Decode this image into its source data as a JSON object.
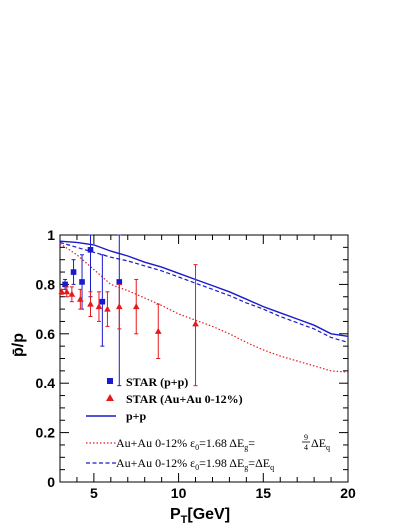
{
  "chart_data": {
    "type": "line",
    "title": "",
    "xlabel": "P_T[GeV]",
    "ylabel": "p̄/p",
    "xlim": [
      3,
      20
    ],
    "ylim": [
      0,
      1
    ],
    "xticks": [
      5,
      10,
      15,
      20
    ],
    "yticks": [
      0,
      0.2,
      0.4,
      0.6,
      0.8,
      1
    ],
    "xtick_labels": [
      "5",
      "10",
      "15",
      "20"
    ],
    "ytick_labels": [
      "0",
      "0.2",
      "0.4",
      "0.6",
      "0.8",
      "1"
    ],
    "grid": false,
    "legend_position": "bottom-left",
    "colors": {
      "blue": "#1a1acc",
      "red": "#e41a1c"
    },
    "series": [
      {
        "name": "STAR (p+p)",
        "kind": "points-blue-squares",
        "points": [
          {
            "x": 3.3,
            "y": 0.8,
            "lo": 0.78,
            "hi": 0.82
          },
          {
            "x": 3.8,
            "y": 0.85,
            "lo": 0.8,
            "hi": 0.9
          },
          {
            "x": 4.3,
            "y": 0.81,
            "lo": 0.7,
            "hi": 0.92
          },
          {
            "x": 4.8,
            "y": 0.94,
            "lo": 0.75,
            "hi": 1.0
          },
          {
            "x": 5.5,
            "y": 0.73,
            "lo": 0.55,
            "hi": 0.92
          },
          {
            "x": 6.5,
            "y": 0.81,
            "lo": 0.39,
            "hi": 1.0
          }
        ]
      },
      {
        "name": "STAR (Au+Au 0-12%)",
        "kind": "points-red-triangles",
        "points": [
          {
            "x": 3.1,
            "y": 0.77,
            "lo": 0.76,
            "hi": 0.78
          },
          {
            "x": 3.4,
            "y": 0.77,
            "lo": 0.75,
            "hi": 0.79
          },
          {
            "x": 3.7,
            "y": 0.76,
            "lo": 0.73,
            "hi": 0.79
          },
          {
            "x": 4.2,
            "y": 0.74,
            "lo": 0.7,
            "hi": 0.78
          },
          {
            "x": 4.8,
            "y": 0.72,
            "lo": 0.67,
            "hi": 0.77
          },
          {
            "x": 5.3,
            "y": 0.71,
            "lo": 0.65,
            "hi": 0.77
          },
          {
            "x": 5.8,
            "y": 0.7,
            "lo": 0.63,
            "hi": 0.77
          },
          {
            "x": 6.5,
            "y": 0.71,
            "lo": 0.62,
            "hi": 0.8
          },
          {
            "x": 7.5,
            "y": 0.71,
            "lo": 0.6,
            "hi": 0.82
          },
          {
            "x": 8.8,
            "y": 0.61,
            "lo": 0.5,
            "hi": 0.72
          },
          {
            "x": 11.0,
            "y": 0.64,
            "lo": 0.39,
            "hi": 0.88
          }
        ]
      },
      {
        "name": "p+p",
        "kind": "line-blue-solid",
        "x": [
          3,
          4,
          5,
          6,
          7,
          8,
          9,
          10,
          11,
          12,
          13,
          14,
          15,
          16,
          17,
          18,
          19,
          20
        ],
        "y": [
          0.975,
          0.97,
          0.96,
          0.935,
          0.915,
          0.89,
          0.87,
          0.845,
          0.82,
          0.795,
          0.77,
          0.74,
          0.71,
          0.685,
          0.66,
          0.635,
          0.6,
          0.59
        ]
      },
      {
        "name": "Au+Au  0-12%  ε0=1.68  ΔEg=9/4ΔEq",
        "kind": "line-red-dotted",
        "x": [
          3,
          4,
          5,
          6,
          7,
          8,
          9,
          10,
          11,
          12,
          13,
          14,
          15,
          16,
          17,
          18,
          19,
          20
        ],
        "y": [
          0.965,
          0.92,
          0.86,
          0.8,
          0.775,
          0.745,
          0.715,
          0.68,
          0.655,
          0.63,
          0.6,
          0.565,
          0.535,
          0.51,
          0.49,
          0.47,
          0.45,
          0.445
        ]
      },
      {
        "name": "Au+Au  0-12%  ε0=1.98  ΔEg=ΔEq",
        "kind": "line-blue-dashed",
        "x": [
          3,
          4,
          5,
          6,
          7,
          8,
          9,
          10,
          11,
          12,
          13,
          14,
          15,
          16,
          17,
          18,
          19,
          20
        ],
        "y": [
          0.97,
          0.95,
          0.93,
          0.91,
          0.895,
          0.875,
          0.855,
          0.83,
          0.805,
          0.78,
          0.755,
          0.725,
          0.7,
          0.67,
          0.645,
          0.62,
          0.585,
          0.565
        ]
      }
    ],
    "legend": {
      "star_pp": "STAR (p+p)",
      "star_auau": "STAR (Au+Au 0-12%)",
      "pp": "p+p",
      "aa1_pre": "Au+Au  0-12%  ε",
      "aa1_sub0": "0",
      "aa1_mid": "=1.68  ΔE",
      "aa1_subg": "g",
      "aa1_eq": "=",
      "aa1_num": "9",
      "aa1_den": "4",
      "aa1_de": "ΔE",
      "aa1_subq": "q",
      "aa2_pre": "Au+Au  0-12%  ε",
      "aa2_sub0": "0",
      "aa2_mid": "=1.98  ΔE",
      "aa2_subg": "g",
      "aa2_eq": "=ΔE",
      "aa2_subq": "q"
    },
    "axis_text": {
      "x_main": "P",
      "x_sub": "T",
      "x_unit": "[GeV]",
      "y_label": "p̄/p"
    }
  }
}
